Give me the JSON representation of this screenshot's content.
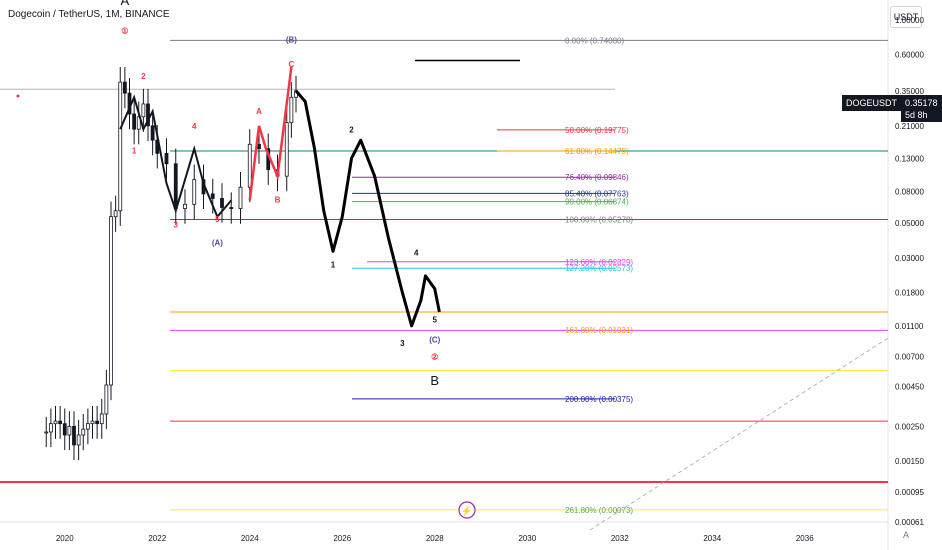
{
  "header": {
    "title": "Dogecoin / TetherUS, 1M, BINANCE",
    "currency_unit": "USDT",
    "scale_label": "A"
  },
  "price_tag": {
    "symbol": "DOGEUSDT",
    "price": "0.35178",
    "countdown": "5d 8h",
    "color": "#131722"
  },
  "chart_data": {
    "type": "candlestick",
    "scale": "log",
    "ylim": [
      0.00061,
      1.0
    ],
    "xlim": [
      2018.6,
      2037.8
    ],
    "x_ticks": [
      "2020",
      "2022",
      "2024",
      "2026",
      "2028",
      "2030",
      "2032",
      "2034",
      "2036"
    ],
    "y_ticks": [
      "1.00000",
      "0.60000",
      "0.35000",
      "0.21000",
      "0.13000",
      "0.08000",
      "0.05000",
      "0.03000",
      "0.01800",
      "0.01100",
      "0.00700",
      "0.00450",
      "0.00250",
      "0.00150",
      "0.00095",
      "0.00061"
    ],
    "candles_approx_close": [
      [
        2019.6,
        0.0023
      ],
      [
        2019.7,
        0.0026
      ],
      [
        2019.8,
        0.0027
      ],
      [
        2019.9,
        0.0026
      ],
      [
        2020.0,
        0.0022
      ],
      [
        2020.1,
        0.0025
      ],
      [
        2020.2,
        0.0019
      ],
      [
        2020.3,
        0.0022
      ],
      [
        2020.4,
        0.0024
      ],
      [
        2020.5,
        0.0026
      ],
      [
        2020.6,
        0.0027
      ],
      [
        2020.7,
        0.0026
      ],
      [
        2020.8,
        0.003
      ],
      [
        2020.9,
        0.0046
      ],
      [
        2021.0,
        0.055
      ],
      [
        2021.1,
        0.06
      ],
      [
        2021.2,
        0.4
      ],
      [
        2021.3,
        0.34
      ],
      [
        2021.4,
        0.25
      ],
      [
        2021.5,
        0.2
      ],
      [
        2021.6,
        0.24
      ],
      [
        2021.7,
        0.29
      ],
      [
        2021.8,
        0.21
      ],
      [
        2021.9,
        0.17
      ],
      [
        2022.0,
        0.14
      ],
      [
        2022.2,
        0.12
      ],
      [
        2022.4,
        0.062
      ],
      [
        2022.6,
        0.066
      ],
      [
        2022.8,
        0.095
      ],
      [
        2023.0,
        0.077
      ],
      [
        2023.2,
        0.072
      ],
      [
        2023.4,
        0.063
      ],
      [
        2023.6,
        0.062
      ],
      [
        2023.8,
        0.085
      ],
      [
        2024.0,
        0.16
      ],
      [
        2024.2,
        0.15
      ],
      [
        2024.4,
        0.11
      ],
      [
        2024.6,
        0.1
      ],
      [
        2024.8,
        0.22
      ],
      [
        2024.9,
        0.32
      ],
      [
        2025.0,
        0.35178
      ]
    ],
    "fib_levels": [
      {
        "label": "0.00% (0.74080)",
        "price": 0.7408,
        "color": "#787b86"
      },
      {
        "label": "50.00% (0.19775)",
        "price": 0.19775,
        "color": "#f23645"
      },
      {
        "label": "61.80% (0.14479)",
        "price": 0.14479,
        "color": "#ff9800"
      },
      {
        "label": "76.40% (0.09846)",
        "price": 0.09846,
        "color": "#9c27b0"
      },
      {
        "label": "85.40% (0.07763)",
        "price": 0.07763,
        "color": "#2a2e9e"
      },
      {
        "label": "90.00% (0.06874)",
        "price": 0.06874,
        "color": "#4caf50"
      },
      {
        "label": "100.00% (0.05278)",
        "price": 0.05278,
        "color": "#787b86"
      },
      {
        "label": "123.60% (0.02829)",
        "price": 0.02829,
        "color": "#e040fb"
      },
      {
        "label": "127.20% (0.02573)",
        "price": 0.02573,
        "color": "#26c6da"
      },
      {
        "label": "161.80% (0.01031)",
        "price": 0.01031,
        "color": "#ff9800"
      },
      {
        "label": "200.00% (0.00375)",
        "price": 0.00375,
        "color": "#1e22aa"
      },
      {
        "label": "261.80% (0.00073)",
        "price": 0.00073,
        "color": "#4caf50"
      }
    ],
    "horizontal_lines": [
      {
        "price": 0.7408,
        "color": "#787b86"
      },
      {
        "price": 0.14479,
        "color": "#00897b"
      },
      {
        "price": 0.05278,
        "color": "#9c27b0"
      },
      {
        "price": 0.0135,
        "color": "#ff9800"
      },
      {
        "price": 0.0103,
        "color": "#e040fb"
      },
      {
        "price": 0.0057,
        "color": "#ffeb3b"
      },
      {
        "price": 0.0027,
        "color": "#f23645"
      },
      {
        "price": 0.0011,
        "color": "#f23645"
      },
      {
        "price": 0.00073,
        "color": "#ffeb3b"
      }
    ],
    "projection_path": [
      [
        2025.0,
        0.35178
      ],
      [
        2025.2,
        0.3
      ],
      [
        2025.4,
        0.15
      ],
      [
        2025.6,
        0.06
      ],
      [
        2025.8,
        0.033
      ],
      [
        2026.0,
        0.055
      ],
      [
        2026.2,
        0.13
      ],
      [
        2026.4,
        0.17
      ],
      [
        2026.7,
        0.1
      ],
      [
        2027.0,
        0.04
      ],
      [
        2027.3,
        0.018
      ],
      [
        2027.5,
        0.011
      ],
      [
        2027.7,
        0.016
      ],
      [
        2027.8,
        0.023
      ],
      [
        2028.0,
        0.019
      ],
      [
        2028.1,
        0.0135
      ]
    ],
    "wave_labels": [
      {
        "text": "A",
        "x": 2021.3,
        "price": 1.25,
        "color": "#131722"
      },
      {
        "text": "①",
        "x": 2021.3,
        "price": 0.82,
        "color": "#f23645"
      },
      {
        "text": "2",
        "x": 2021.7,
        "price": 0.42,
        "color": "#f23645"
      },
      {
        "text": "1",
        "x": 2021.5,
        "price": 0.14,
        "color": "#f23645"
      },
      {
        "text": "4",
        "x": 2022.8,
        "price": 0.2,
        "color": "#f23645"
      },
      {
        "text": "3",
        "x": 2022.4,
        "price": 0.047,
        "color": "#f23645"
      },
      {
        "text": "5",
        "x": 2023.3,
        "price": 0.051,
        "color": "#f23645"
      },
      {
        "text": "(A)",
        "x": 2023.3,
        "price": 0.036,
        "color": "#5d43a5"
      },
      {
        "text": "A",
        "x": 2024.2,
        "price": 0.25,
        "color": "#f23645"
      },
      {
        "text": "B",
        "x": 2024.6,
        "price": 0.068,
        "color": "#f23645"
      },
      {
        "text": "(B)",
        "x": 2024.9,
        "price": 0.72,
        "color": "#5d43a5"
      },
      {
        "text": "C",
        "x": 2024.9,
        "price": 0.5,
        "color": "#f23645"
      },
      {
        "text": "2",
        "x": 2026.2,
        "price": 0.19,
        "color": "#131722"
      },
      {
        "text": "1",
        "x": 2025.8,
        "price": 0.026,
        "color": "#131722"
      },
      {
        "text": "4",
        "x": 2027.6,
        "price": 0.031,
        "color": "#131722"
      },
      {
        "text": "3",
        "x": 2027.3,
        "price": 0.0082,
        "color": "#131722"
      },
      {
        "text": "5",
        "x": 2028.0,
        "price": 0.0116,
        "color": "#131722"
      },
      {
        "text": "(C)",
        "x": 2028.0,
        "price": 0.0086,
        "color": "#5d43a5"
      },
      {
        "text": "②",
        "x": 2028.0,
        "price": 0.0067,
        "color": "#f23645"
      },
      {
        "text": "B",
        "x": 2028.0,
        "price": 0.0046,
        "color": "#131722"
      }
    ]
  }
}
